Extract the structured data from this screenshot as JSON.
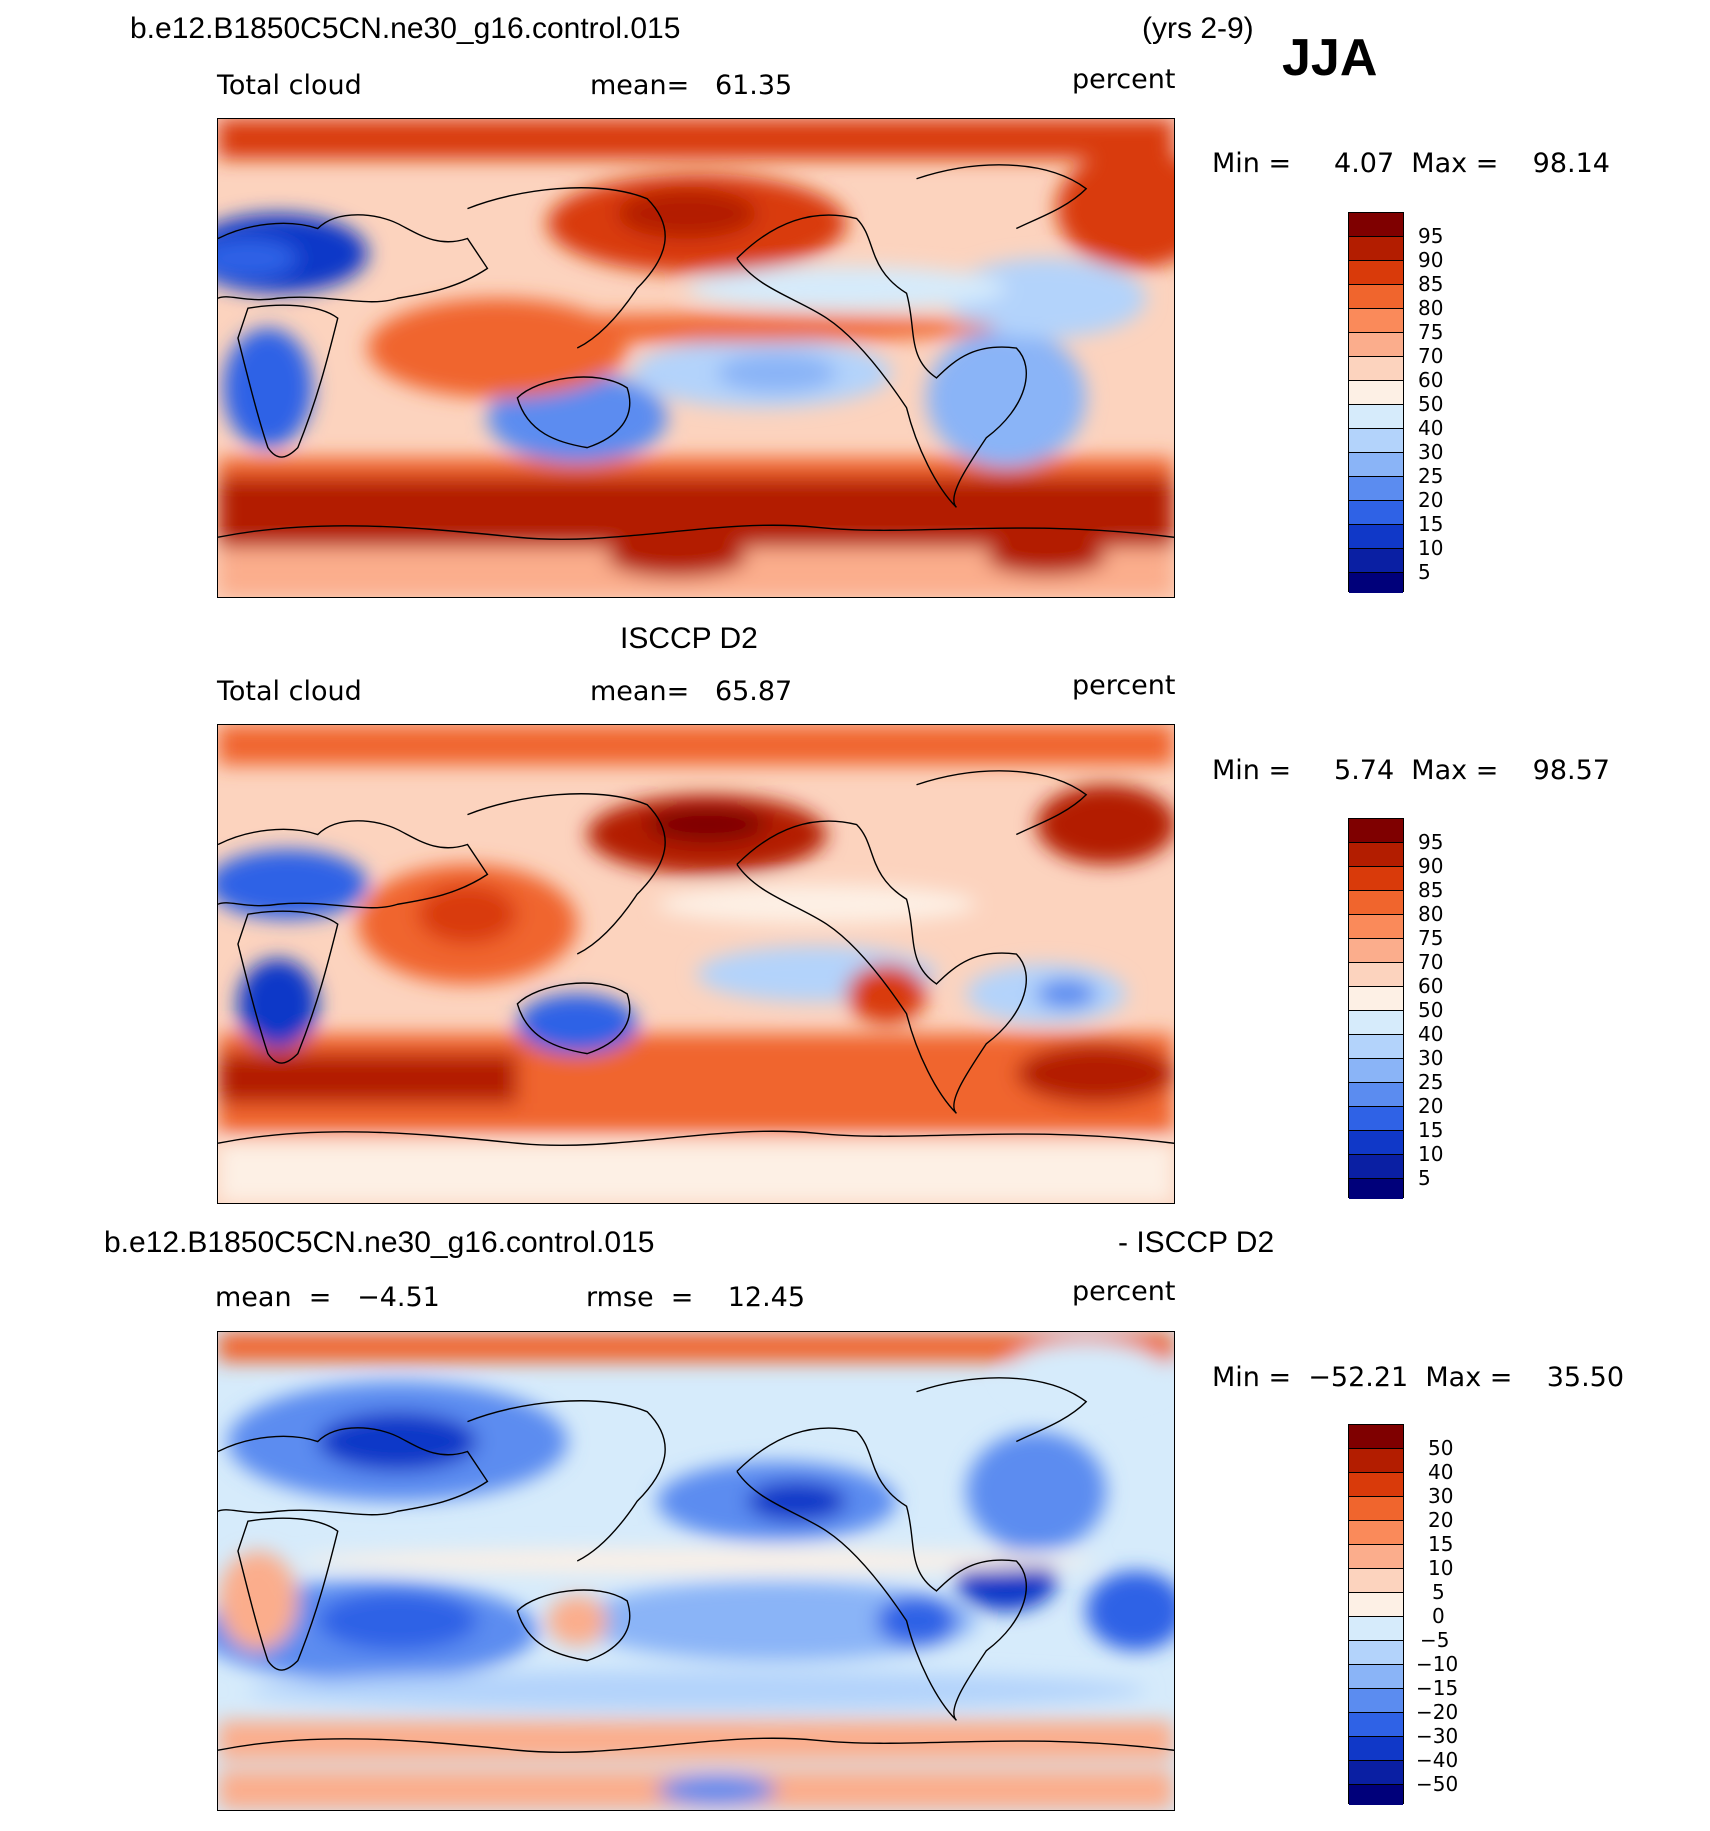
{
  "header": {
    "case_name": "b.e12.B1850C5CN.ne30_g16.control.015",
    "years": "(yrs 2-9)",
    "season": "JJA"
  },
  "panels": [
    {
      "id": "model",
      "title": "",
      "variable": "Total cloud",
      "stat": "mean=   61.35",
      "units": "percent",
      "minmax": "Min =     4.07  Max =    98.14",
      "levels": [
        "95",
        "90",
        "85",
        "80",
        "75",
        "70",
        "60",
        "50",
        "40",
        "30",
        "25",
        "20",
        "15",
        "10",
        "5"
      ]
    },
    {
      "id": "obs",
      "title": "ISCCP D2",
      "variable": "Total cloud",
      "stat": "mean=   65.87",
      "units": "percent",
      "minmax": "Min =     5.74  Max =    98.57",
      "levels": [
        "95",
        "90",
        "85",
        "80",
        "75",
        "70",
        "60",
        "50",
        "40",
        "30",
        "25",
        "20",
        "15",
        "10",
        "5"
      ]
    },
    {
      "id": "diff",
      "title_left": "b.e12.B1850C5CN.ne30_g16.control.015",
      "title_right": "- ISCCP D2",
      "variable": "mean  =   −4.51",
      "stat": "rmse  =    12.45",
      "units": "percent",
      "minmax": "Min =  −52.21  Max =    35.50",
      "levels": [
        "50",
        "40",
        "30",
        "20",
        "15",
        "10",
        "5",
        "0",
        "−5",
        "−10",
        "−15",
        "−20",
        "−30",
        "−40",
        "−50"
      ]
    }
  ],
  "palette": [
    "#7f0000",
    "#b31d00",
    "#d93a0a",
    "#f0652d",
    "#fa8a5a",
    "#fbad8c",
    "#fcd3be",
    "#fdf0e5",
    "#d6ebfb",
    "#b3d3fb",
    "#8ab4f7",
    "#5b8cf0",
    "#2f62e6",
    "#1038c8",
    "#0a1fa3",
    "#00007a"
  ]
}
